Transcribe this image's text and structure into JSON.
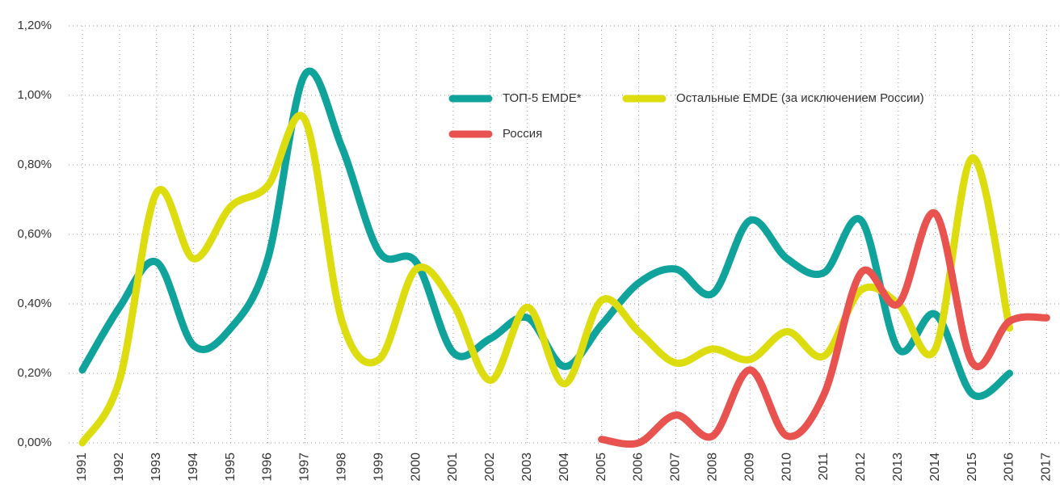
{
  "chart_data": {
    "type": "line",
    "categories": [
      "1991",
      "1992",
      "1993",
      "1994",
      "1995",
      "1996",
      "1997",
      "1998",
      "1999",
      "2000",
      "2001",
      "2002",
      "2003",
      "2004",
      "2005",
      "2006",
      "2007",
      "2008",
      "2009",
      "2010",
      "2011",
      "2012",
      "2013",
      "2014",
      "2015",
      "2016",
      "2017"
    ],
    "series": [
      {
        "name": "ТОП-5 EMDE*",
        "color": "#10a39b",
        "values": [
          0.21,
          0.39,
          0.52,
          0.28,
          0.33,
          0.53,
          1.06,
          0.85,
          0.55,
          0.52,
          0.26,
          0.3,
          0.36,
          0.22,
          0.34,
          0.46,
          0.5,
          0.43,
          0.64,
          0.53,
          0.49,
          0.64,
          0.27,
          0.37,
          0.14,
          0.2,
          null
        ]
      },
      {
        "name": "Остальные EMDE (за исключением России)",
        "color": "#dcdc0e",
        "values": [
          0.0,
          0.18,
          0.72,
          0.53,
          0.68,
          0.74,
          0.93,
          0.35,
          0.24,
          0.5,
          0.4,
          0.18,
          0.39,
          0.17,
          0.41,
          0.32,
          0.23,
          0.27,
          0.24,
          0.32,
          0.25,
          0.44,
          0.4,
          0.27,
          0.82,
          0.33,
          null
        ]
      },
      {
        "name": "Россия",
        "color": "#e9534f",
        "values": [
          null,
          null,
          null,
          null,
          null,
          null,
          null,
          null,
          null,
          null,
          null,
          null,
          null,
          null,
          0.01,
          0.0,
          0.08,
          0.02,
          0.21,
          0.02,
          0.14,
          0.49,
          0.4,
          0.66,
          0.23,
          0.35,
          0.36
        ]
      }
    ],
    "ylim": [
      0,
      1.2
    ],
    "yticks": [
      {
        "value": 0,
        "label": "0,00%"
      },
      {
        "value": 0.2,
        "label": "0,20%"
      },
      {
        "value": 0.4,
        "label": "0,40%"
      },
      {
        "value": 0.6,
        "label": "0,60%"
      },
      {
        "value": 0.8,
        "label": "0,80%"
      },
      {
        "value": 1.0,
        "label": "1,00%"
      },
      {
        "value": 1.2,
        "label": "1,20%"
      }
    ],
    "grid": true
  }
}
